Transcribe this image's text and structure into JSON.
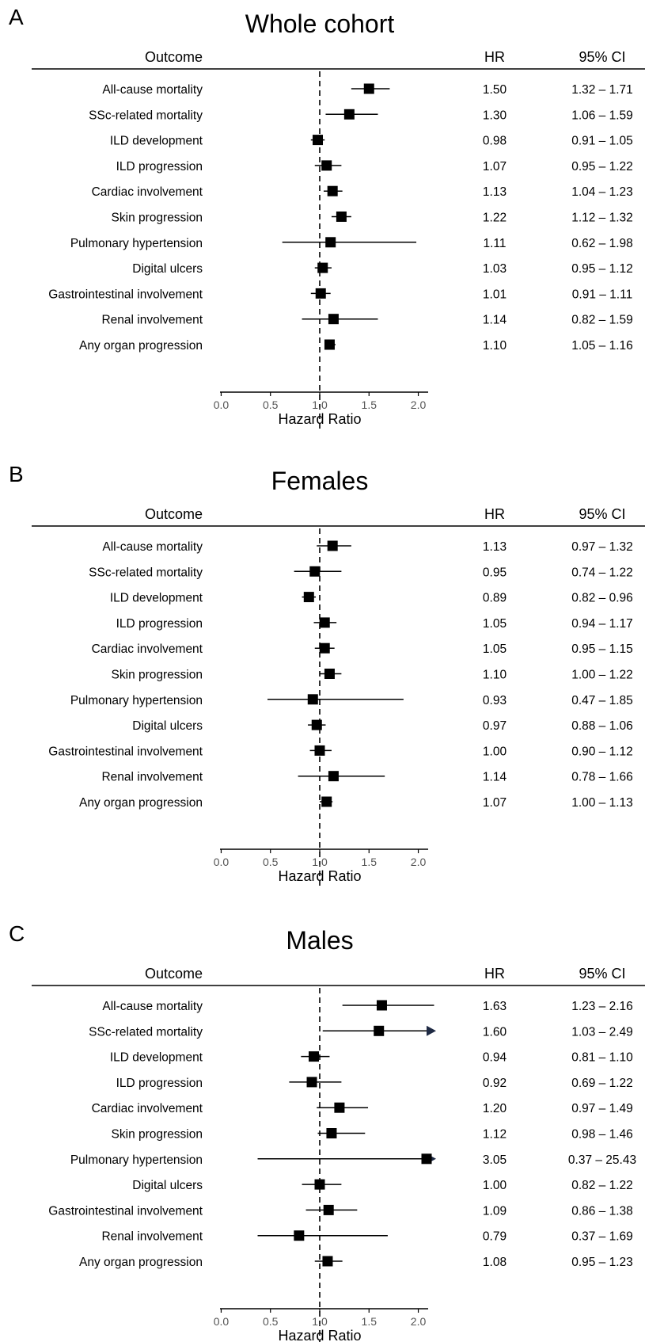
{
  "chart_data": [
    {
      "type": "forest",
      "panel_label": "A",
      "title": "Whole cohort",
      "column_headers": {
        "outcome": "Outcome",
        "hr": "HR",
        "ci": "95% CI"
      },
      "xlabel": "Hazard Ratio",
      "xlim": [
        -0.1,
        2.1
      ],
      "xticks": [
        "0.0",
        "0.5",
        "1.0",
        "1.5",
        "2.0"
      ],
      "reference_line": 1.0,
      "rows": [
        {
          "outcome": "All-cause mortality",
          "hr": 1.5,
          "lo": 1.32,
          "hi": 1.71,
          "hr_text": "1.50",
          "ci_text": "1.32 – 1.71"
        },
        {
          "outcome": "SSc-related mortality",
          "hr": 1.3,
          "lo": 1.06,
          "hi": 1.59,
          "hr_text": "1.30",
          "ci_text": "1.06 – 1.59"
        },
        {
          "outcome": "ILD development",
          "hr": 0.98,
          "lo": 0.91,
          "hi": 1.05,
          "hr_text": "0.98",
          "ci_text": "0.91 – 1.05"
        },
        {
          "outcome": "ILD progression",
          "hr": 1.07,
          "lo": 0.95,
          "hi": 1.22,
          "hr_text": "1.07",
          "ci_text": "0.95 – 1.22"
        },
        {
          "outcome": "Cardiac involvement",
          "hr": 1.13,
          "lo": 1.04,
          "hi": 1.23,
          "hr_text": "1.13",
          "ci_text": "1.04 – 1.23"
        },
        {
          "outcome": "Skin progression",
          "hr": 1.22,
          "lo": 1.12,
          "hi": 1.32,
          "hr_text": "1.22",
          "ci_text": "1.12 – 1.32"
        },
        {
          "outcome": "Pulmonary hypertension",
          "hr": 1.11,
          "lo": 0.62,
          "hi": 1.98,
          "hr_text": "1.11",
          "ci_text": "0.62 – 1.98"
        },
        {
          "outcome": "Digital ulcers",
          "hr": 1.03,
          "lo": 0.95,
          "hi": 1.12,
          "hr_text": "1.03",
          "ci_text": "0.95 – 1.12"
        },
        {
          "outcome": "Gastrointestinal involvement",
          "hr": 1.01,
          "lo": 0.91,
          "hi": 1.11,
          "hr_text": "1.01",
          "ci_text": "0.91 – 1.11"
        },
        {
          "outcome": "Renal involvement",
          "hr": 1.14,
          "lo": 0.82,
          "hi": 1.59,
          "hr_text": "1.14",
          "ci_text": "0.82 – 1.59"
        },
        {
          "outcome": "Any organ progression",
          "hr": 1.1,
          "lo": 1.05,
          "hi": 1.16,
          "hr_text": "1.10",
          "ci_text": "1.05 – 1.16"
        }
      ]
    },
    {
      "type": "forest",
      "panel_label": "B",
      "title": "Females",
      "column_headers": {
        "outcome": "Outcome",
        "hr": "HR",
        "ci": "95% CI"
      },
      "xlabel": "Hazard Ratio",
      "xlim": [
        -0.1,
        2.1
      ],
      "xticks": [
        "0.0",
        "0.5",
        "1.0",
        "1.5",
        "2.0"
      ],
      "reference_line": 1.0,
      "rows": [
        {
          "outcome": "All-cause mortality",
          "hr": 1.13,
          "lo": 0.97,
          "hi": 1.32,
          "hr_text": "1.13",
          "ci_text": "0.97 – 1.32"
        },
        {
          "outcome": "SSc-related mortality",
          "hr": 0.95,
          "lo": 0.74,
          "hi": 1.22,
          "hr_text": "0.95",
          "ci_text": "0.74 – 1.22"
        },
        {
          "outcome": "ILD development",
          "hr": 0.89,
          "lo": 0.82,
          "hi": 0.96,
          "hr_text": "0.89",
          "ci_text": "0.82 – 0.96"
        },
        {
          "outcome": "ILD progression",
          "hr": 1.05,
          "lo": 0.94,
          "hi": 1.17,
          "hr_text": "1.05",
          "ci_text": "0.94 – 1.17"
        },
        {
          "outcome": "Cardiac involvement",
          "hr": 1.05,
          "lo": 0.95,
          "hi": 1.15,
          "hr_text": "1.05",
          "ci_text": "0.95 – 1.15"
        },
        {
          "outcome": "Skin progression",
          "hr": 1.1,
          "lo": 1.0,
          "hi": 1.22,
          "hr_text": "1.10",
          "ci_text": "1.00 – 1.22"
        },
        {
          "outcome": "Pulmonary hypertension",
          "hr": 0.93,
          "lo": 0.47,
          "hi": 1.85,
          "hr_text": "0.93",
          "ci_text": "0.47 – 1.85"
        },
        {
          "outcome": "Digital ulcers",
          "hr": 0.97,
          "lo": 0.88,
          "hi": 1.06,
          "hr_text": "0.97",
          "ci_text": "0.88 – 1.06"
        },
        {
          "outcome": "Gastrointestinal involvement",
          "hr": 1.0,
          "lo": 0.9,
          "hi": 1.12,
          "hr_text": "1.00",
          "ci_text": "0.90 – 1.12"
        },
        {
          "outcome": "Renal involvement",
          "hr": 1.14,
          "lo": 0.78,
          "hi": 1.66,
          "hr_text": "1.14",
          "ci_text": "0.78 – 1.66"
        },
        {
          "outcome": "Any organ progression",
          "hr": 1.07,
          "lo": 1.0,
          "hi": 1.13,
          "hr_text": "1.07",
          "ci_text": "1.00 – 1.13"
        }
      ]
    },
    {
      "type": "forest",
      "panel_label": "C",
      "title": "Males",
      "column_headers": {
        "outcome": "Outcome",
        "hr": "HR",
        "ci": "95% CI"
      },
      "xlabel": "Hazard Ratio",
      "xlim": [
        -0.1,
        2.1
      ],
      "xticks": [
        "0.0",
        "0.5",
        "1.0",
        "1.5",
        "2.0"
      ],
      "reference_line": 1.0,
      "rows": [
        {
          "outcome": "All-cause mortality",
          "hr": 1.63,
          "lo": 1.23,
          "hi": 2.16,
          "hr_text": "1.63",
          "ci_text": "1.23 – 2.16"
        },
        {
          "outcome": "SSc-related mortality",
          "hr": 1.6,
          "lo": 1.03,
          "hi": 2.49,
          "hr_text": "1.60",
          "ci_text": "1.03 – 2.49"
        },
        {
          "outcome": "ILD development",
          "hr": 0.94,
          "lo": 0.81,
          "hi": 1.1,
          "hr_text": "0.94",
          "ci_text": "0.81 – 1.10"
        },
        {
          "outcome": "ILD progression",
          "hr": 0.92,
          "lo": 0.69,
          "hi": 1.22,
          "hr_text": "0.92",
          "ci_text": "0.69 – 1.22"
        },
        {
          "outcome": "Cardiac involvement",
          "hr": 1.2,
          "lo": 0.97,
          "hi": 1.49,
          "hr_text": "1.20",
          "ci_text": "0.97 – 1.49"
        },
        {
          "outcome": "Skin progression",
          "hr": 1.12,
          "lo": 0.98,
          "hi": 1.46,
          "hr_text": "1.12",
          "ci_text": "0.98 – 1.46"
        },
        {
          "outcome": "Pulmonary hypertension",
          "hr": 3.05,
          "lo": 0.37,
          "hi": 25.43,
          "hr_text": "3.05",
          "ci_text": "0.37 – 25.43"
        },
        {
          "outcome": "Digital ulcers",
          "hr": 1.0,
          "lo": 0.82,
          "hi": 1.22,
          "hr_text": "1.00",
          "ci_text": "0.82 – 1.22"
        },
        {
          "outcome": "Gastrointestinal involvement",
          "hr": 1.09,
          "lo": 0.86,
          "hi": 1.38,
          "hr_text": "1.09",
          "ci_text": "0.86 – 1.38"
        },
        {
          "outcome": "Renal involvement",
          "hr": 0.79,
          "lo": 0.37,
          "hi": 1.69,
          "hr_text": "0.79",
          "ci_text": "0.37 – 1.69"
        },
        {
          "outcome": "Any organ progression",
          "hr": 1.08,
          "lo": 0.95,
          "hi": 1.23,
          "hr_text": "1.08",
          "ci_text": "0.95 – 1.23"
        }
      ]
    }
  ],
  "colors": {
    "marker": "#000000",
    "arrow": "#1f2a44",
    "text": "#000000",
    "tick_text": "#555555"
  }
}
